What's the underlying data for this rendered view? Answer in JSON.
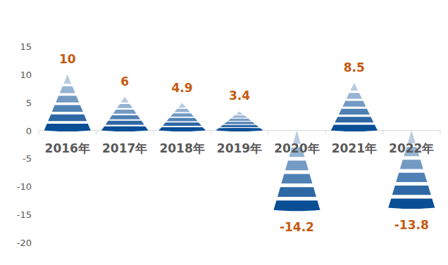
{
  "chart_data": {
    "type": "bar",
    "categories": [
      "2016年",
      "2017年",
      "2018年",
      "2019年",
      "2020年",
      "2021年",
      "2022年"
    ],
    "values": [
      10,
      6,
      4.9,
      3.4,
      -14.2,
      8.5,
      -13.8
    ],
    "color": "#0a4f96",
    "ylim": [
      -20,
      15
    ],
    "yticks": [
      -20,
      -15,
      -10,
      -5,
      0,
      5,
      10,
      15
    ],
    "grid": false,
    "data_labels": true
  }
}
